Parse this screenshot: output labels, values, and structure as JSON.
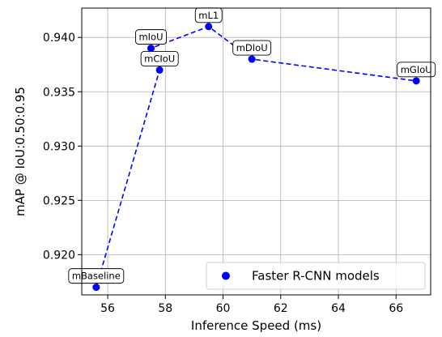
{
  "chart_data": {
    "type": "scatter",
    "title": "",
    "xlabel": "Inference Speed (ms)",
    "ylabel": "mAP @ IoU:0.50:0.95",
    "xlim": [
      55.1,
      67.2
    ],
    "ylim": [
      0.9163,
      0.9427
    ],
    "xticks": [
      56,
      58,
      60,
      62,
      64,
      66
    ],
    "yticks": [
      0.92,
      0.925,
      0.93,
      0.935,
      0.94
    ],
    "xtick_labels": [
      "56",
      "58",
      "60",
      "62",
      "64",
      "66"
    ],
    "ytick_labels": [
      "0.920",
      "0.925",
      "0.930",
      "0.935",
      "0.940"
    ],
    "grid": true,
    "legend_position": "lower-right",
    "series": [
      {
        "name": "Faster R-CNN models",
        "color": "#0000ff",
        "line_style": "dashed",
        "points": [
          {
            "label": "mBaseline",
            "x": 55.6,
            "y": 0.917
          },
          {
            "label": "mCIoU",
            "x": 57.8,
            "y": 0.937
          },
          {
            "label": "mIoU",
            "x": 57.5,
            "y": 0.939
          },
          {
            "label": "mL1",
            "x": 59.5,
            "y": 0.941
          },
          {
            "label": "mDIoU",
            "x": 61.0,
            "y": 0.938
          },
          {
            "label": "mGIoU",
            "x": 66.7,
            "y": 0.936
          }
        ]
      }
    ]
  }
}
